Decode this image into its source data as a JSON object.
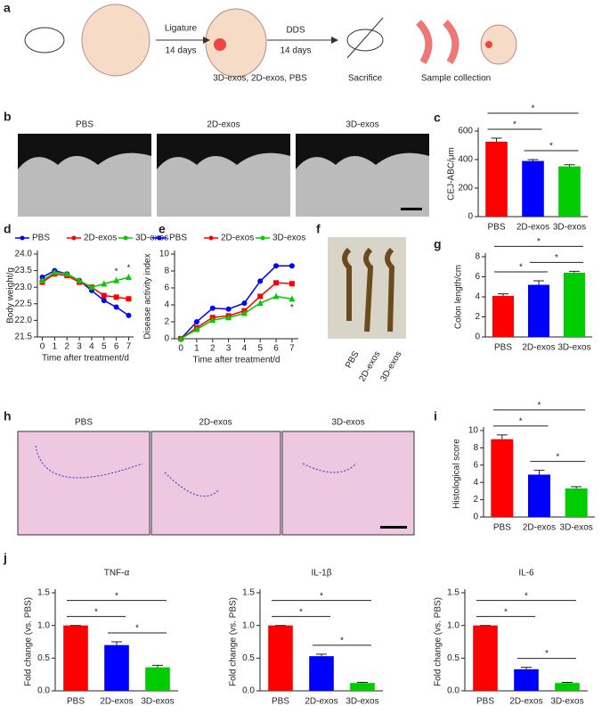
{
  "panel_a": {
    "label": "a",
    "steps": [
      "Ligature",
      "14 days",
      "DDS",
      "14 days",
      "3D-exos, 2D-exos, PBS",
      "Sacrifice",
      "Sample collection"
    ]
  },
  "panel_b": {
    "label": "b",
    "images": [
      "PBS",
      "2D-exos",
      "3D-exos"
    ]
  },
  "panel_f": {
    "label": "f",
    "samples": [
      "PBS",
      "2D-exos",
      "3D-exos"
    ]
  },
  "panel_h": {
    "label": "h",
    "images": [
      "PBS",
      "2D-exos",
      "3D-exos"
    ]
  },
  "chart_data": [
    {
      "type": "bar",
      "panel": "c",
      "ylabel": "CEJ-ABC/μm",
      "categories": [
        "PBS",
        "2D-exos",
        "3D-exos"
      ],
      "values": [
        525,
        390,
        352
      ],
      "errors": [
        25,
        10,
        12
      ],
      "colors": [
        "#ff0000",
        "#0000ff",
        "#00cc00"
      ],
      "ylim": [
        0,
        600
      ],
      "yticks": [
        0,
        200,
        400,
        600
      ],
      "annotations": [
        "*",
        "*",
        "*"
      ]
    },
    {
      "type": "line",
      "panel": "d",
      "ylabel": "Body weight/g",
      "xlabel": "Time after treatment/d",
      "x": [
        0,
        1,
        2,
        3,
        4,
        5,
        6,
        7
      ],
      "xlim": [
        -0.4,
        7.4
      ],
      "xticks": [
        0,
        1,
        2,
        3,
        4,
        5,
        6,
        7
      ],
      "ylim": [
        21.5,
        24.0
      ],
      "yticks": [
        21.5,
        {
          "value": 22,
          "label": "22.0"
        },
        22.5,
        {
          "value": 23,
          "label": "23.0"
        },
        23.5,
        {
          "value": 24,
          "label": "24.0"
        }
      ],
      "legend": "top",
      "series": [
        {
          "name": "PBS",
          "color": "#0000ff",
          "marker": "circle",
          "values": [
            23.3,
            23.5,
            23.4,
            23.2,
            22.9,
            22.6,
            22.4,
            22.15
          ]
        },
        {
          "name": "2D-exos",
          "color": "#ff0000",
          "marker": "square",
          "values": [
            23.15,
            23.4,
            23.35,
            23.15,
            23.0,
            22.75,
            22.7,
            22.65
          ]
        },
        {
          "name": "3D-exos",
          "color": "#00cc00",
          "marker": "triangle",
          "values": [
            23.2,
            23.45,
            23.4,
            23.2,
            23.0,
            23.1,
            23.2,
            23.3
          ]
        }
      ],
      "annotations": [
        "*",
        "*"
      ]
    },
    {
      "type": "line",
      "panel": "e",
      "ylabel": "Disease activity index",
      "xlabel": "Time after treatment/d",
      "x": [
        0,
        1,
        2,
        3,
        4,
        5,
        6,
        7
      ],
      "xlim": [
        -0.4,
        7.4
      ],
      "xticks": [
        0,
        1,
        2,
        3,
        4,
        5,
        6,
        7
      ],
      "ylim": [
        0,
        10
      ],
      "yticks": [
        0,
        2,
        4,
        6,
        8,
        10
      ],
      "legend": "top",
      "series": [
        {
          "name": "PBS",
          "color": "#0000ff",
          "marker": "circle",
          "values": [
            0,
            2.0,
            3.6,
            3.5,
            4.2,
            6.8,
            8.6,
            8.6
          ]
        },
        {
          "name": "2D-exos",
          "color": "#ff0000",
          "marker": "square",
          "values": [
            0,
            1.3,
            2.5,
            2.7,
            3.3,
            5.0,
            6.6,
            6.5
          ]
        },
        {
          "name": "3D-exos",
          "color": "#00cc00",
          "marker": "triangle",
          "values": [
            0,
            1.1,
            2.2,
            2.5,
            3.0,
            4.2,
            5.0,
            4.7
          ]
        }
      ],
      "annotations": [
        "*"
      ]
    },
    {
      "type": "bar",
      "panel": "g",
      "ylabel": "Colon length/cm",
      "categories": [
        "PBS",
        "2D-exos",
        "3D-exos"
      ],
      "values": [
        4.1,
        5.2,
        6.4
      ],
      "errors": [
        0.2,
        0.4,
        0.15
      ],
      "colors": [
        "#ff0000",
        "#0000ff",
        "#00cc00"
      ],
      "ylim": [
        0,
        8
      ],
      "yticks": [
        0,
        2,
        4,
        6,
        8
      ],
      "annotations": [
        "*",
        "*",
        "*"
      ]
    },
    {
      "type": "bar",
      "panel": "i",
      "ylabel": "Histological score",
      "categories": [
        "PBS",
        "2D-exos",
        "3D-exos"
      ],
      "values": [
        9.0,
        4.9,
        3.3
      ],
      "errors": [
        0.5,
        0.5,
        0.2
      ],
      "colors": [
        "#ff0000",
        "#0000ff",
        "#00cc00"
      ],
      "ylim": [
        0,
        10
      ],
      "yticks": [
        0,
        2,
        4,
        6,
        8,
        10
      ],
      "annotations": [
        "*",
        "*",
        "*"
      ]
    },
    {
      "type": "bar",
      "panel": "j",
      "title": "TNF-α",
      "ylabel": "Fold change (vs. PBS)",
      "categories": [
        "PBS",
        "2D-exos",
        "3D-exos"
      ],
      "values": [
        1.0,
        0.7,
        0.36
      ],
      "errors": [
        0,
        0.05,
        0.03
      ],
      "colors": [
        "#ff0000",
        "#0000ff",
        "#00cc00"
      ],
      "ylim": [
        0,
        1.5
      ],
      "yticks": [
        {
          "value": 0,
          "label": "0.0"
        },
        0.5,
        {
          "value": 1,
          "label": "1.0"
        },
        1.5
      ],
      "annotations": [
        "*",
        "*",
        "*"
      ]
    },
    {
      "type": "bar",
      "title": "IL-1β",
      "ylabel": "Fold change (vs. PBS)",
      "categories": [
        "PBS",
        "2D-exos",
        "3D-exos"
      ],
      "values": [
        1.0,
        0.53,
        0.12
      ],
      "errors": [
        0,
        0.03,
        0.01
      ],
      "colors": [
        "#ff0000",
        "#0000ff",
        "#00cc00"
      ],
      "ylim": [
        0,
        1.5
      ],
      "yticks": [
        {
          "value": 0,
          "label": "0.0"
        },
        0.5,
        {
          "value": 1,
          "label": "1.0"
        },
        1.5
      ],
      "annotations": [
        "*",
        "*",
        "*"
      ]
    },
    {
      "type": "bar",
      "title": "IL-6",
      "ylabel": "Fold change (vs. PBS)",
      "categories": [
        "PBS",
        "2D-exos",
        "3D-exos"
      ],
      "values": [
        1.0,
        0.33,
        0.12
      ],
      "errors": [
        0,
        0.03,
        0.01
      ],
      "colors": [
        "#ff0000",
        "#0000ff",
        "#00cc00"
      ],
      "ylim": [
        0,
        1.5
      ],
      "yticks": [
        {
          "value": 0,
          "label": "0.0"
        },
        0.5,
        {
          "value": 1,
          "label": "1.0"
        },
        1.5
      ],
      "annotations": [
        "*",
        "*",
        "*"
      ]
    }
  ]
}
